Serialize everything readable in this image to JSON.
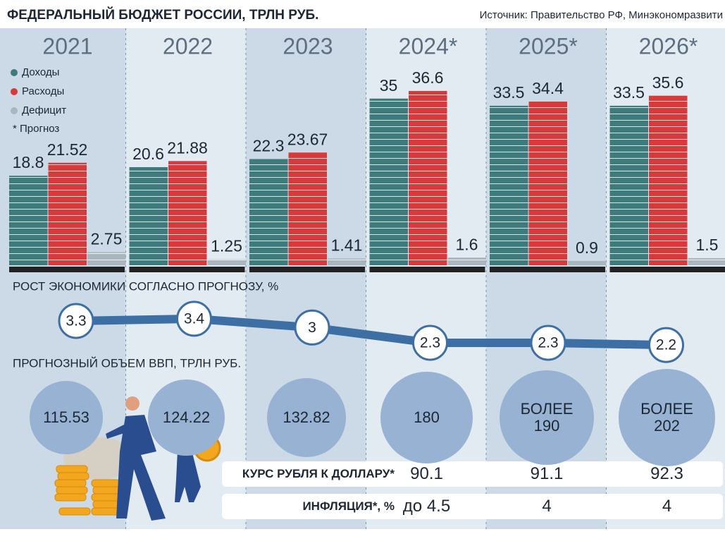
{
  "title": "ФЕДЕРАЛЬНЫЙ БЮДЖЕТ РОССИИ, ТРЛН РУБ.",
  "source": "Источник: Правительство РФ, Минэкономразвити",
  "chart_data": [
    {
      "type": "bar",
      "categories": [
        "2021",
        "2022",
        "2023",
        "2024*",
        "2025*",
        "2026*"
      ],
      "series": [
        {
          "name": "Доходы",
          "color": "#3d7b7d",
          "values": [
            18.8,
            20.6,
            22.3,
            35,
            33.5,
            33.5
          ]
        },
        {
          "name": "Расходы",
          "color": "#d63a3a",
          "values": [
            21.52,
            21.88,
            23.67,
            36.6,
            34.4,
            35.6
          ]
        },
        {
          "name": "Дефицит",
          "color": "#a9b5bf",
          "values": [
            2.75,
            1.25,
            1.41,
            1.6,
            0.9,
            1.5
          ]
        }
      ],
      "note": "* Прогноз"
    },
    {
      "type": "line",
      "title": "РОСТ ЭКОНОМИКИ СОГЛАСНО ПРОГНОЗУ, %",
      "values": [
        3.3,
        3.4,
        3,
        2.3,
        2.3,
        2.2
      ],
      "color": "#3d6fa5"
    },
    {
      "type": "bubble",
      "title": "ПРОГНОЗНЫЙ ОБЪЕМ ВВП, ТРЛН РУБ.",
      "values": [
        115.53,
        124.22,
        132.82,
        180,
        190,
        202
      ],
      "value_labels": [
        "115.53",
        "124.22",
        "132.82",
        "180",
        "БОЛЕЕ 190",
        "БОЛЕЕ 202"
      ],
      "color": "#98b2d3"
    }
  ],
  "table": {
    "rows": [
      {
        "label": "КУРС РУБЛЯ К ДОЛЛАРУ*",
        "values": [
          "90.1",
          "91.1",
          "92.3"
        ]
      },
      {
        "label": "ИНФЛЯЦИЯ*, %",
        "values": [
          "до 4.5",
          "4",
          "4"
        ]
      }
    ]
  }
}
